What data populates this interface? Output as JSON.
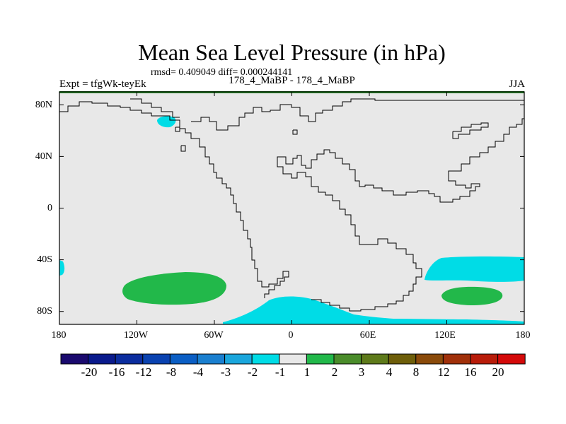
{
  "title": "Mean Sea Level Pressure (in hPa)",
  "stats": "rmsd= 0.409049 diff= 0.000244141",
  "left_label": "Expt = tfgWk-teyEk",
  "center_label": "178_4_MaBP - 178_4_MaBP",
  "right_label": "JJA",
  "map": {
    "lat_labels": [
      "80N",
      "40N",
      "0",
      "40S",
      "80S"
    ],
    "lat_values": [
      80,
      40,
      0,
      -40,
      -80
    ],
    "lon_labels": [
      "180",
      "120W",
      "60W",
      "0",
      "60E",
      "120E",
      "180"
    ],
    "lon_values": [
      -180,
      -120,
      -60,
      0,
      60,
      120,
      180
    ],
    "lat_range": [
      -90,
      90
    ],
    "lon_range": [
      -180,
      180
    ],
    "ocean_color": "#e8e8e8",
    "border_color": "#2a8c2a"
  },
  "colorbar": {
    "labels": [
      "-20",
      "-16",
      "-12",
      "-8",
      "-4",
      "-3",
      "-2",
      "-1",
      "1",
      "2",
      "3",
      "4",
      "8",
      "12",
      "16",
      "20"
    ],
    "colors": [
      "#1a0a6e",
      "#0a1a8c",
      "#0b2d9e",
      "#0a42b0",
      "#0b5ec4",
      "#1a7fcf",
      "#1aa6dc",
      "#00dce6",
      "#e8e8e8",
      "#22b84a",
      "#4a8c2a",
      "#5e7a1a",
      "#6e5e0a",
      "#8a4a0a",
      "#a0300a",
      "#b81c0a",
      "#d40a0a"
    ]
  },
  "anomalies": [
    {
      "name": "anomaly-cyan-arctic",
      "category": "-1 to -2",
      "color": "#00dce6"
    },
    {
      "name": "anomaly-cyan-west-edge",
      "category": "-1 to -2",
      "color": "#00dce6"
    },
    {
      "name": "anomaly-green-south-pacific",
      "category": "1 to 2",
      "color": "#22b84a"
    },
    {
      "name": "anomaly-cyan-antarctic-atlantic",
      "category": "-1 to -2",
      "color": "#00dce6"
    },
    {
      "name": "anomaly-cyan-south-pacific-east",
      "category": "-1 to -2",
      "color": "#00dce6"
    },
    {
      "name": "anomaly-green-south-indian",
      "category": "1 to 2",
      "color": "#22b84a"
    }
  ]
}
